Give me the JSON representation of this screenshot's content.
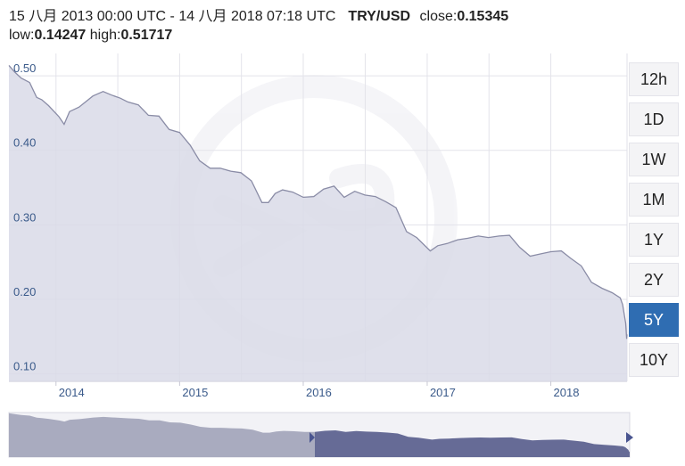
{
  "header": {
    "range_text": "15 八月 2013 00:00 UTC - 14 八月 2018 07:18 UTC",
    "pair": "TRY/USD",
    "close_label": "close:",
    "close_value": "0.15345",
    "low_label": "low:",
    "low_value": "0.14247",
    "high_label": "high:",
    "high_value": "0.51717"
  },
  "range_buttons": [
    {
      "label": "12h",
      "active": false
    },
    {
      "label": "1D",
      "active": false
    },
    {
      "label": "1W",
      "active": false
    },
    {
      "label": "1M",
      "active": false
    },
    {
      "label": "1Y",
      "active": false
    },
    {
      "label": "2Y",
      "active": false
    },
    {
      "label": "5Y",
      "active": true
    },
    {
      "label": "10Y",
      "active": false
    }
  ],
  "colors": {
    "area_fill": "#d9dbe8",
    "line": "#8a8ca6",
    "grid": "#e3e3ea",
    "active_button": "#2f6db2",
    "navigator_selected": "#666b96",
    "navigator_unselected": "#a9abbf"
  },
  "chart_data": {
    "type": "area",
    "title": "",
    "xlabel": "",
    "ylabel": "",
    "x_ticks": [
      "2014",
      "2015",
      "2016",
      "2017",
      "2018"
    ],
    "y_ticks": [
      "0.50",
      "0.40",
      "0.30",
      "0.20",
      "0.10"
    ],
    "ylim": [
      0.09,
      0.53
    ],
    "xlim": [
      "2013-08-15",
      "2018-08-14"
    ],
    "grid": true,
    "series": [
      {
        "points": [
          [
            "2013-08-15",
            0.514
          ],
          [
            "2013-09-01",
            0.505
          ],
          [
            "2013-09-20",
            0.497
          ],
          [
            "2013-10-15",
            0.491
          ],
          [
            "2013-11-05",
            0.471
          ],
          [
            "2013-11-20",
            0.468
          ],
          [
            "2013-12-10",
            0.46
          ],
          [
            "2014-01-10",
            0.445
          ],
          [
            "2014-01-25",
            0.435
          ],
          [
            "2014-02-10",
            0.452
          ],
          [
            "2014-03-10",
            0.458
          ],
          [
            "2014-04-20",
            0.473
          ],
          [
            "2014-05-20",
            0.479
          ],
          [
            "2014-06-15",
            0.474
          ],
          [
            "2014-07-10",
            0.47
          ],
          [
            "2014-08-01",
            0.465
          ],
          [
            "2014-09-01",
            0.461
          ],
          [
            "2014-10-01",
            0.447
          ],
          [
            "2014-11-01",
            0.446
          ],
          [
            "2014-12-01",
            0.428
          ],
          [
            "2015-01-01",
            0.424
          ],
          [
            "2015-02-01",
            0.407
          ],
          [
            "2015-03-01",
            0.386
          ],
          [
            "2015-04-01",
            0.376
          ],
          [
            "2015-05-01",
            0.376
          ],
          [
            "2015-06-01",
            0.372
          ],
          [
            "2015-07-01",
            0.37
          ],
          [
            "2015-08-01",
            0.359
          ],
          [
            "2015-09-01",
            0.33
          ],
          [
            "2015-09-20",
            0.33
          ],
          [
            "2015-10-10",
            0.342
          ],
          [
            "2015-11-01",
            0.347
          ],
          [
            "2015-12-01",
            0.344
          ],
          [
            "2016-01-01",
            0.337
          ],
          [
            "2016-02-01",
            0.338
          ],
          [
            "2016-03-01",
            0.348
          ],
          [
            "2016-04-01",
            0.352
          ],
          [
            "2016-05-01",
            0.337
          ],
          [
            "2016-06-01",
            0.345
          ],
          [
            "2016-07-01",
            0.34
          ],
          [
            "2016-08-01",
            0.338
          ],
          [
            "2016-09-01",
            0.331
          ],
          [
            "2016-10-01",
            0.323
          ],
          [
            "2016-11-01",
            0.291
          ],
          [
            "2016-12-01",
            0.283
          ],
          [
            "2017-01-10",
            0.265
          ],
          [
            "2017-02-01",
            0.272
          ],
          [
            "2017-03-01",
            0.275
          ],
          [
            "2017-04-01",
            0.28
          ],
          [
            "2017-05-01",
            0.282
          ],
          [
            "2017-06-01",
            0.285
          ],
          [
            "2017-07-01",
            0.283
          ],
          [
            "2017-08-01",
            0.285
          ],
          [
            "2017-09-01",
            0.286
          ],
          [
            "2017-10-01",
            0.27
          ],
          [
            "2017-11-01",
            0.258
          ],
          [
            "2017-12-01",
            0.261
          ],
          [
            "2018-01-01",
            0.264
          ],
          [
            "2018-02-01",
            0.265
          ],
          [
            "2018-03-01",
            0.255
          ],
          [
            "2018-04-01",
            0.245
          ],
          [
            "2018-05-01",
            0.223
          ],
          [
            "2018-06-01",
            0.215
          ],
          [
            "2018-07-01",
            0.209
          ],
          [
            "2018-07-25",
            0.202
          ],
          [
            "2018-08-01",
            0.193
          ],
          [
            "2018-08-10",
            0.168
          ],
          [
            "2018-08-13",
            0.147
          ],
          [
            "2018-08-14",
            0.153
          ]
        ]
      }
    ]
  }
}
